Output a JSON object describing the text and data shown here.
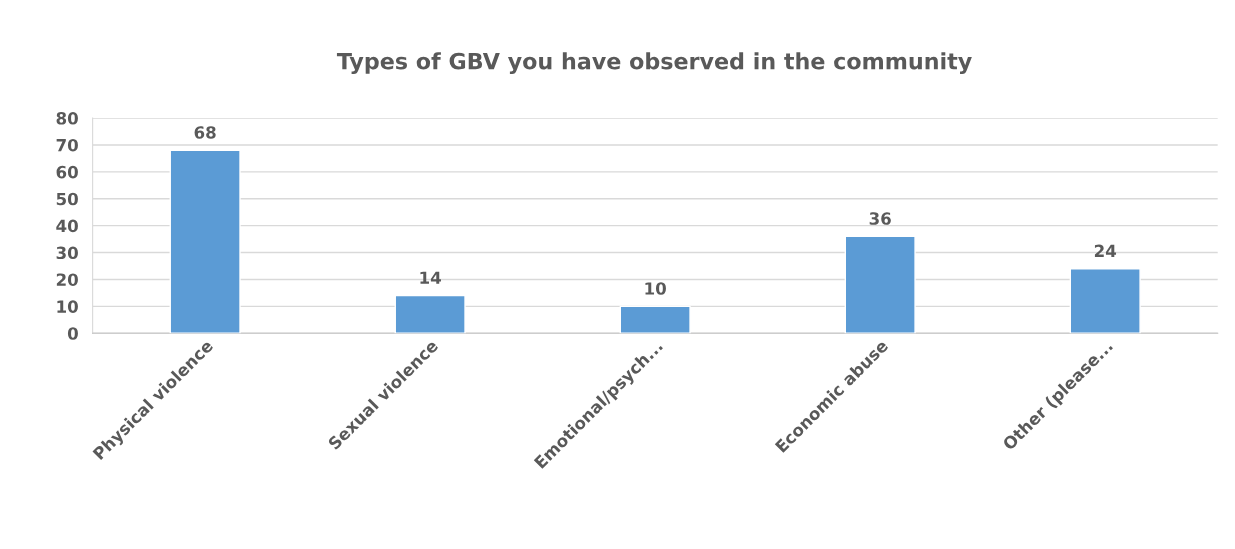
{
  "chart_data": {
    "type": "bar",
    "title": "Types of GBV you have observed in the community",
    "categories": [
      "Physical violence",
      "Sexual violence",
      "Emotional/psych...",
      "Economic abuse",
      "Other (please..."
    ],
    "values": [
      68,
      14,
      10,
      36,
      24
    ],
    "color": "#5b9bd5",
    "ylim": [
      0,
      80
    ],
    "yticks": [
      0,
      10,
      20,
      30,
      40,
      50,
      60,
      70,
      80
    ],
    "grid": "y",
    "data_labels": true
  }
}
